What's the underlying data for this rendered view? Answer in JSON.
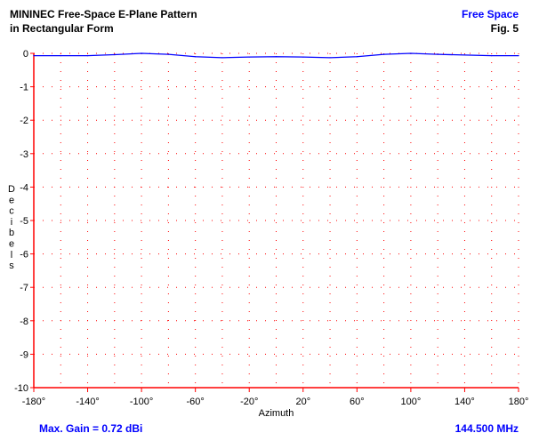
{
  "header": {
    "title_line1": "MININEC Free-Space E-Plane Pattern",
    "title_line2": "in Rectangular Form",
    "env": "Free Space",
    "fig": "Fig. 5"
  },
  "footer": {
    "max_gain": "Max. Gain = 0.72 dBi",
    "frequency": "144.500 MHz"
  },
  "colors": {
    "axis": "#ff0000",
    "grid": "#ff0000",
    "series": "#0000ff",
    "annotation": "#0000ff"
  },
  "chart_data": {
    "type": "line",
    "title": "MININEC Free-Space E-Plane Pattern in Rectangular Form",
    "xlabel": "Azimuth",
    "ylabel": "Decibels",
    "xlim": [
      -180,
      180
    ],
    "ylim": [
      -10,
      0
    ],
    "grid": true,
    "xticks": [
      "-180°",
      "-140°",
      "-100°",
      "-60°",
      "-20°",
      "20°",
      "60°",
      "100°",
      "140°",
      "180°"
    ],
    "xtick_values": [
      -180,
      -140,
      -100,
      -60,
      -20,
      20,
      60,
      100,
      140,
      180
    ],
    "yticks": [
      "0",
      "-1",
      "-2",
      "-3",
      "-4",
      "-5",
      "-6",
      "-7",
      "-8",
      "-9",
      "-10"
    ],
    "ytick_values": [
      0,
      -1,
      -2,
      -3,
      -4,
      -5,
      -6,
      -7,
      -8,
      -9,
      -10
    ],
    "x": [
      -180,
      -160,
      -140,
      -120,
      -100,
      -80,
      -60,
      -40,
      -20,
      0,
      20,
      40,
      60,
      80,
      100,
      120,
      140,
      160,
      180
    ],
    "y": [
      -0.07,
      -0.07,
      -0.07,
      -0.04,
      0,
      -0.03,
      -0.1,
      -0.13,
      -0.11,
      -0.1,
      -0.11,
      -0.13,
      -0.1,
      -0.03,
      0,
      -0.03,
      -0.05,
      -0.07,
      -0.07
    ]
  }
}
